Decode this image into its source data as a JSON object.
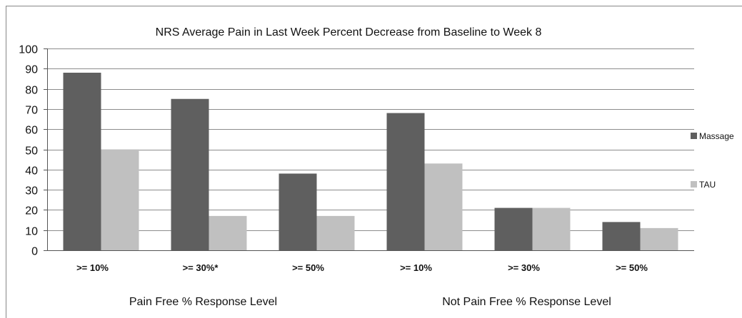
{
  "chart_data": {
    "type": "bar",
    "title": "NRS Average Pain in Last Week Percent Decrease from Baseline to Week 8",
    "categories": [
      ">= 10%",
      ">= 30%*",
      ">= 50%",
      ">= 10%",
      ">= 30%",
      ">= 50%"
    ],
    "category_groups": [
      {
        "label": "Pain Free % Response Level",
        "start": 0,
        "end": 2
      },
      {
        "label": "Not Pain Free % Response Level",
        "start": 3,
        "end": 5
      }
    ],
    "series": [
      {
        "name": "Massage",
        "color": "#5f5f5f",
        "values": [
          88,
          75,
          38,
          68,
          21,
          14
        ]
      },
      {
        "name": "TAU",
        "color": "#c0c0c0",
        "values": [
          50,
          17,
          17,
          43,
          21,
          11
        ]
      }
    ],
    "ylim": [
      0,
      100
    ],
    "yticks": [
      0,
      10,
      20,
      30,
      40,
      50,
      60,
      70,
      80,
      90,
      100
    ],
    "grid": true,
    "legend_position": "right"
  }
}
